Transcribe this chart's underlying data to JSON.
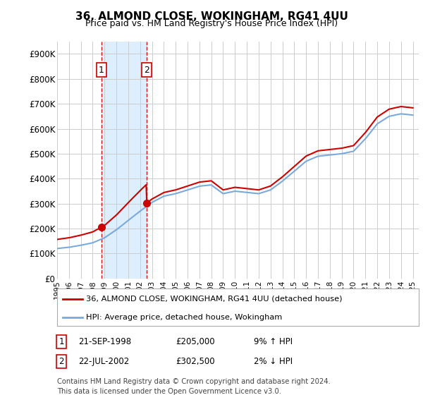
{
  "title": "36, ALMOND CLOSE, WOKINGHAM, RG41 4UU",
  "subtitle": "Price paid vs. HM Land Registry's House Price Index (HPI)",
  "ylabel_ticks": [
    "£0",
    "£100K",
    "£200K",
    "£300K",
    "£400K",
    "£500K",
    "£600K",
    "£700K",
    "£800K",
    "£900K"
  ],
  "ytick_values": [
    0,
    100000,
    200000,
    300000,
    400000,
    500000,
    600000,
    700000,
    800000,
    900000
  ],
  "ylim": [
    0,
    950000
  ],
  "xlim_start": 1995.0,
  "xlim_end": 2025.5,
  "purchases": [
    {
      "date_year": 1998.72,
      "price": 205000,
      "label": "1"
    },
    {
      "date_year": 2002.55,
      "price": 302500,
      "label": "2"
    }
  ],
  "purchase_color": "#cc0000",
  "hpi_color": "#7aaadd",
  "shaded_color": "#ddeeff",
  "vline_color": "#cc0000",
  "legend_entries": [
    "36, ALMOND CLOSE, WOKINGHAM, RG41 4UU (detached house)",
    "HPI: Average price, detached house, Wokingham"
  ],
  "table_rows": [
    {
      "num": "1",
      "date": "21-SEP-1998",
      "price": "£205,000",
      "hpi": "9% ↑ HPI"
    },
    {
      "num": "2",
      "date": "22-JUL-2002",
      "price": "£302,500",
      "hpi": "2% ↓ HPI"
    }
  ],
  "footnote": "Contains HM Land Registry data © Crown copyright and database right 2024.\nThis data is licensed under the Open Government Licence v3.0.",
  "background_color": "#ffffff",
  "grid_color": "#cccccc",
  "hpi_base": 120000,
  "hpi_knots": [
    [
      1995.0,
      120000
    ],
    [
      1996.0,
      125000
    ],
    [
      1997.0,
      133000
    ],
    [
      1998.0,
      143000
    ],
    [
      1999.0,
      163000
    ],
    [
      2000.0,
      195000
    ],
    [
      2001.0,
      233000
    ],
    [
      2002.0,
      270000
    ],
    [
      2003.0,
      305000
    ],
    [
      2004.0,
      330000
    ],
    [
      2005.0,
      340000
    ],
    [
      2006.0,
      355000
    ],
    [
      2007.0,
      370000
    ],
    [
      2008.0,
      375000
    ],
    [
      2009.0,
      340000
    ],
    [
      2010.0,
      350000
    ],
    [
      2011.0,
      345000
    ],
    [
      2012.0,
      340000
    ],
    [
      2013.0,
      355000
    ],
    [
      2014.0,
      390000
    ],
    [
      2015.0,
      430000
    ],
    [
      2016.0,
      470000
    ],
    [
      2017.0,
      490000
    ],
    [
      2018.0,
      495000
    ],
    [
      2019.0,
      500000
    ],
    [
      2020.0,
      510000
    ],
    [
      2021.0,
      560000
    ],
    [
      2022.0,
      620000
    ],
    [
      2023.0,
      650000
    ],
    [
      2024.0,
      660000
    ],
    [
      2025.0,
      655000
    ]
  ]
}
